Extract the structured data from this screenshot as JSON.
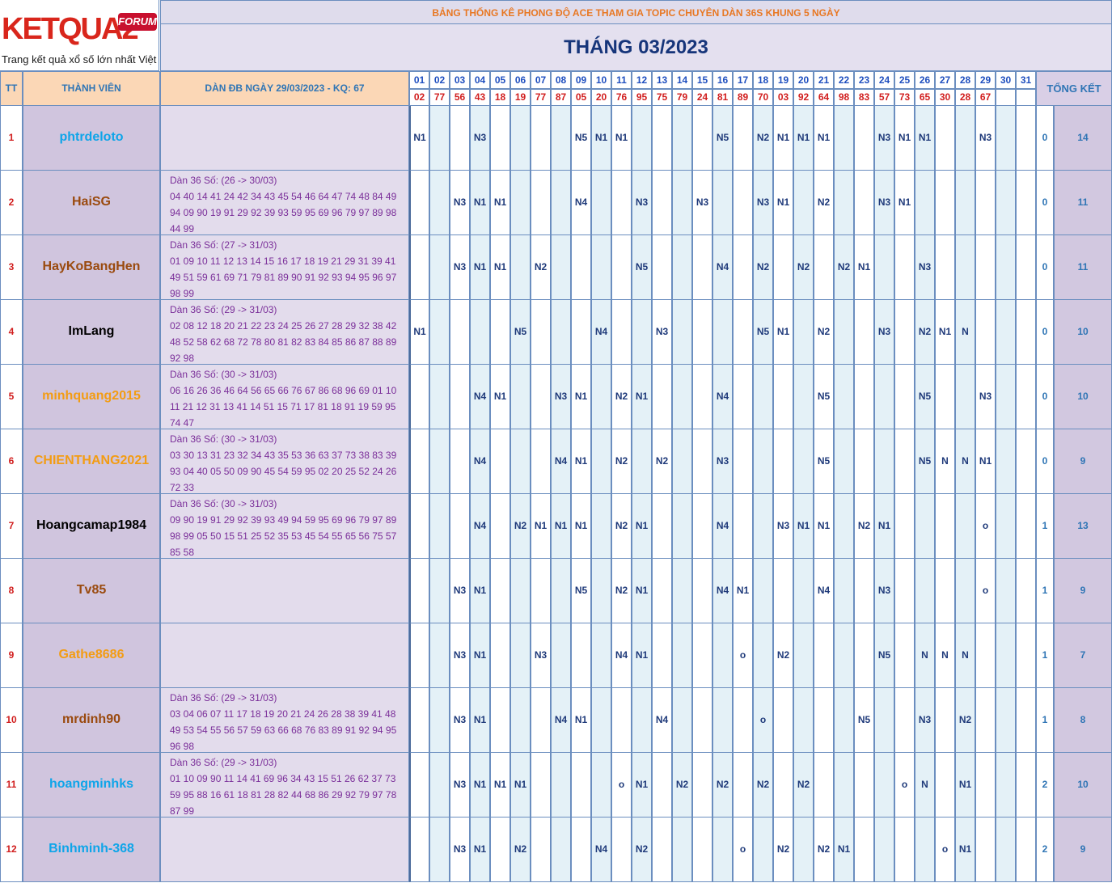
{
  "logo": {
    "wordmark": "KETQUA2",
    "badge": "FORUM",
    "tagline": "Trang kết quả xổ số lớn nhất Việt Nam"
  },
  "banner": "BẢNG THỐNG KÊ PHONG ĐỘ ACE THAM GIA TOPIC CHUYÊN DÀN 36S KHUNG 5 NGÀY",
  "month_title": "THÁNG 03/2023",
  "header": {
    "tt": "TT",
    "member": "THÀNH VIÊN",
    "dan_label": "DÀN ĐB NGÀY 29/03/2023 - KQ: 67",
    "summary": "TỔNG KẾT"
  },
  "days": [
    "01",
    "02",
    "03",
    "04",
    "05",
    "06",
    "07",
    "08",
    "09",
    "10",
    "11",
    "12",
    "13",
    "14",
    "15",
    "16",
    "17",
    "18",
    "19",
    "20",
    "21",
    "22",
    "23",
    "24",
    "25",
    "26",
    "27",
    "28",
    "29",
    "30",
    "31"
  ],
  "results": [
    "02",
    "77",
    "56",
    "43",
    "18",
    "19",
    "77",
    "87",
    "05",
    "20",
    "76",
    "95",
    "75",
    "79",
    "24",
    "81",
    "89",
    "70",
    "03",
    "92",
    "64",
    "98",
    "83",
    "57",
    "73",
    "65",
    "30",
    "28",
    "67",
    "",
    ""
  ],
  "colors": {
    "sky": "#0ea5e9",
    "brown": "#9a4a0e",
    "black": "#000000",
    "orange": "#f39c12",
    "purple": "#7a2e99"
  },
  "rows": [
    {
      "tt": "1",
      "name": "phtrdeloto",
      "color": "#0ea5e9",
      "dan": "",
      "cells": [
        "N1",
        "",
        "",
        "N3",
        "",
        "",
        "",
        "",
        "N5",
        "N1",
        "N1",
        "",
        "",
        "",
        "",
        "N5",
        "",
        "N2",
        "N1",
        "N1",
        "N1",
        "",
        "",
        "N3",
        "N1",
        "N1",
        "",
        "",
        "N3",
        "",
        ""
      ],
      "s1": "0",
      "s2": "14"
    },
    {
      "tt": "2",
      "name": "HaiSG",
      "color": "#9a4a0e",
      "dan": "Dàn 36 Số: (26 -> 30/03)\n04 40 14 41 24 42 34 43 45 54 46 64 47 74 48 84 49\n94 09 90 19 91 29 92 39 93 59 95 69 96 79 97 89 98\n44 99",
      "cells": [
        "",
        "",
        "N3",
        "N1",
        "N1",
        "",
        "",
        "",
        "N4",
        "",
        "",
        "N3",
        "",
        "",
        "N3",
        "",
        "",
        "N3",
        "N1",
        "",
        "N2",
        "",
        "",
        "N3",
        "N1",
        "",
        "",
        "",
        "",
        "",
        ""
      ],
      "s1": "0",
      "s2": "11"
    },
    {
      "tt": "3",
      "name": "HayKoBangHen",
      "color": "#9a4a0e",
      "dan": "Dàn 36 Số: (27 -> 31/03)\n01 09 10 11 12 13 14 15 16 17 18 19 21 29 31 39 41\n49 51 59 61 69 71 79 81 89 90 91 92 93 94 95 96 97\n98 99",
      "cells": [
        "",
        "",
        "N3",
        "N1",
        "N1",
        "",
        "N2",
        "",
        "",
        "",
        "",
        "N5",
        "",
        "",
        "",
        "N4",
        "",
        "N2",
        "",
        "N2",
        "",
        "N2",
        "N1",
        "",
        "",
        "N3",
        "",
        "",
        "",
        "",
        ""
      ],
      "s1": "0",
      "s2": "11"
    },
    {
      "tt": "4",
      "name": "ImLang",
      "color": "#000000",
      "dan": "Dàn 36 Số: (29 -> 31/03)\n02 08 12 18 20 21 22 23 24 25 26 27 28 29 32 38 42\n48 52 58 62 68 72 78 80 81 82 83 84 85 86 87 88 89\n92 98",
      "cells": [
        "N1",
        "",
        "",
        "",
        "",
        "N5",
        "",
        "",
        "",
        "N4",
        "",
        "",
        "N3",
        "",
        "",
        "",
        "",
        "N5",
        "N1",
        "",
        "N2",
        "",
        "",
        "N3",
        "",
        "N2",
        "N1",
        "N",
        "",
        "",
        ""
      ],
      "s1": "0",
      "s2": "10"
    },
    {
      "tt": "5",
      "name": "minhquang2015",
      "color": "#f39c12",
      "dan": "Dàn 36 Số: (30 -> 31/03)\n06 16 26 36 46 64 56 65 66 76 67 86 68 96 69 01 10\n11 21 12 31 13 41 14 51 15 71 17 81 18 91 19 59 95\n74 47",
      "cells": [
        "",
        "",
        "",
        "N4",
        "N1",
        "",
        "",
        "N3",
        "N1",
        "",
        "N2",
        "N1",
        "",
        "",
        "",
        "N4",
        "",
        "",
        "",
        "",
        "N5",
        "",
        "",
        "",
        "",
        "N5",
        "",
        "",
        "N3",
        "",
        ""
      ],
      "s1": "0",
      "s2": "10"
    },
    {
      "tt": "6",
      "name": "CHIENTHANG2021",
      "color": "#f39c12",
      "dan": "Dàn 36 Số: (30 -> 31/03)\n03 30 13 31 23 32 34 43 35 53 36 63 37 73 38 83 39\n93 04 40 05 50 09 90 45 54 59 95 02 20 25 52 24 26\n72 33",
      "cells": [
        "",
        "",
        "",
        "N4",
        "",
        "",
        "",
        "N4",
        "N1",
        "",
        "N2",
        "",
        "N2",
        "",
        "",
        "N3",
        "",
        "",
        "",
        "",
        "N5",
        "",
        "",
        "",
        "",
        "N5",
        "N",
        "N",
        "N1",
        "",
        ""
      ],
      "s1": "0",
      "s2": "9"
    },
    {
      "tt": "7",
      "name": "Hoangcamap1984",
      "color": "#000000",
      "dan": "Dàn 36 Số: (30 -> 31/03)\n09 90 19 91 29 92 39 93 49 94 59 95 69 96 79 97 89\n98 99 05 50 15 51 25 52 35 53 45 54 55 65 56 75 57\n85 58",
      "cells": [
        "",
        "",
        "",
        "N4",
        "",
        "N2",
        "N1",
        "N1",
        "N1",
        "",
        "N2",
        "N1",
        "",
        "",
        "",
        "N4",
        "",
        "",
        "N3",
        "N1",
        "N1",
        "",
        "N2",
        "N1",
        "",
        "",
        "",
        "",
        "o",
        "",
        ""
      ],
      "s1": "1",
      "s2": "13"
    },
    {
      "tt": "8",
      "name": "Tv85",
      "color": "#9a4a0e",
      "dan": "",
      "cells": [
        "",
        "",
        "N3",
        "N1",
        "",
        "",
        "",
        "",
        "N5",
        "",
        "N2",
        "N1",
        "",
        "",
        "",
        "N4",
        "N1",
        "",
        "",
        "",
        "N4",
        "",
        "",
        "N3",
        "",
        "",
        "",
        "",
        "o",
        "",
        ""
      ],
      "s1": "1",
      "s2": "9"
    },
    {
      "tt": "9",
      "name": "Gathe8686",
      "color": "#f39c12",
      "dan": "",
      "cells": [
        "",
        "",
        "N3",
        "N1",
        "",
        "",
        "N3",
        "",
        "",
        "",
        "N4",
        "N1",
        "",
        "",
        "",
        "",
        "o",
        "",
        "N2",
        "",
        "",
        "",
        "",
        "N5",
        "",
        "N",
        "N",
        "N",
        "",
        "",
        ""
      ],
      "s1": "1",
      "s2": "7"
    },
    {
      "tt": "10",
      "name": "mrdinh90",
      "color": "#9a4a0e",
      "dan": "Dàn 36 Số: (29 -> 31/03)\n03 04 06 07 11 17 18 19 20 21 24 26 28 38 39 41 48\n49 53 54 55 56 57 59 63 66 68 76 83 89 91 92 94 95\n96 98",
      "cells": [
        "",
        "",
        "N3",
        "N1",
        "",
        "",
        "",
        "N4",
        "N1",
        "",
        "",
        "",
        "N4",
        "",
        "",
        "",
        "",
        "o",
        "",
        "",
        "",
        "",
        "N5",
        "",
        "",
        "N3",
        "",
        "N2",
        "",
        "",
        ""
      ],
      "s1": "1",
      "s2": "8"
    },
    {
      "tt": "11",
      "name": "hoangminhks",
      "color": "#0ea5e9",
      "dan": "Dàn 36 Số: (29 -> 31/03)\n01 10 09 90 11 14 41 69 96 34 43 15 51 26 62 37 73\n59 95 88 16 61 18 81 28 82 44 68 86 29 92 79 97 78\n87 99",
      "cells": [
        "",
        "",
        "N3",
        "N1",
        "N1",
        "N1",
        "",
        "",
        "",
        "",
        "o",
        "N1",
        "",
        "N2",
        "",
        "N2",
        "",
        "N2",
        "",
        "N2",
        "",
        "",
        "",
        "",
        "o",
        "N",
        "",
        "N1",
        "",
        "",
        ""
      ],
      "s1": "2",
      "s2": "10"
    },
    {
      "tt": "12",
      "name": "Binhminh-368",
      "color": "#0ea5e9",
      "dan": "",
      "cells": [
        "",
        "",
        "N3",
        "N1",
        "",
        "N2",
        "",
        "",
        "",
        "N4",
        "",
        "N2",
        "",
        "",
        "",
        "",
        "o",
        "",
        "N2",
        "",
        "N2",
        "N1",
        "",
        "",
        "",
        "",
        "o",
        "N1",
        "",
        "",
        ""
      ],
      "s1": "2",
      "s2": "9"
    }
  ]
}
